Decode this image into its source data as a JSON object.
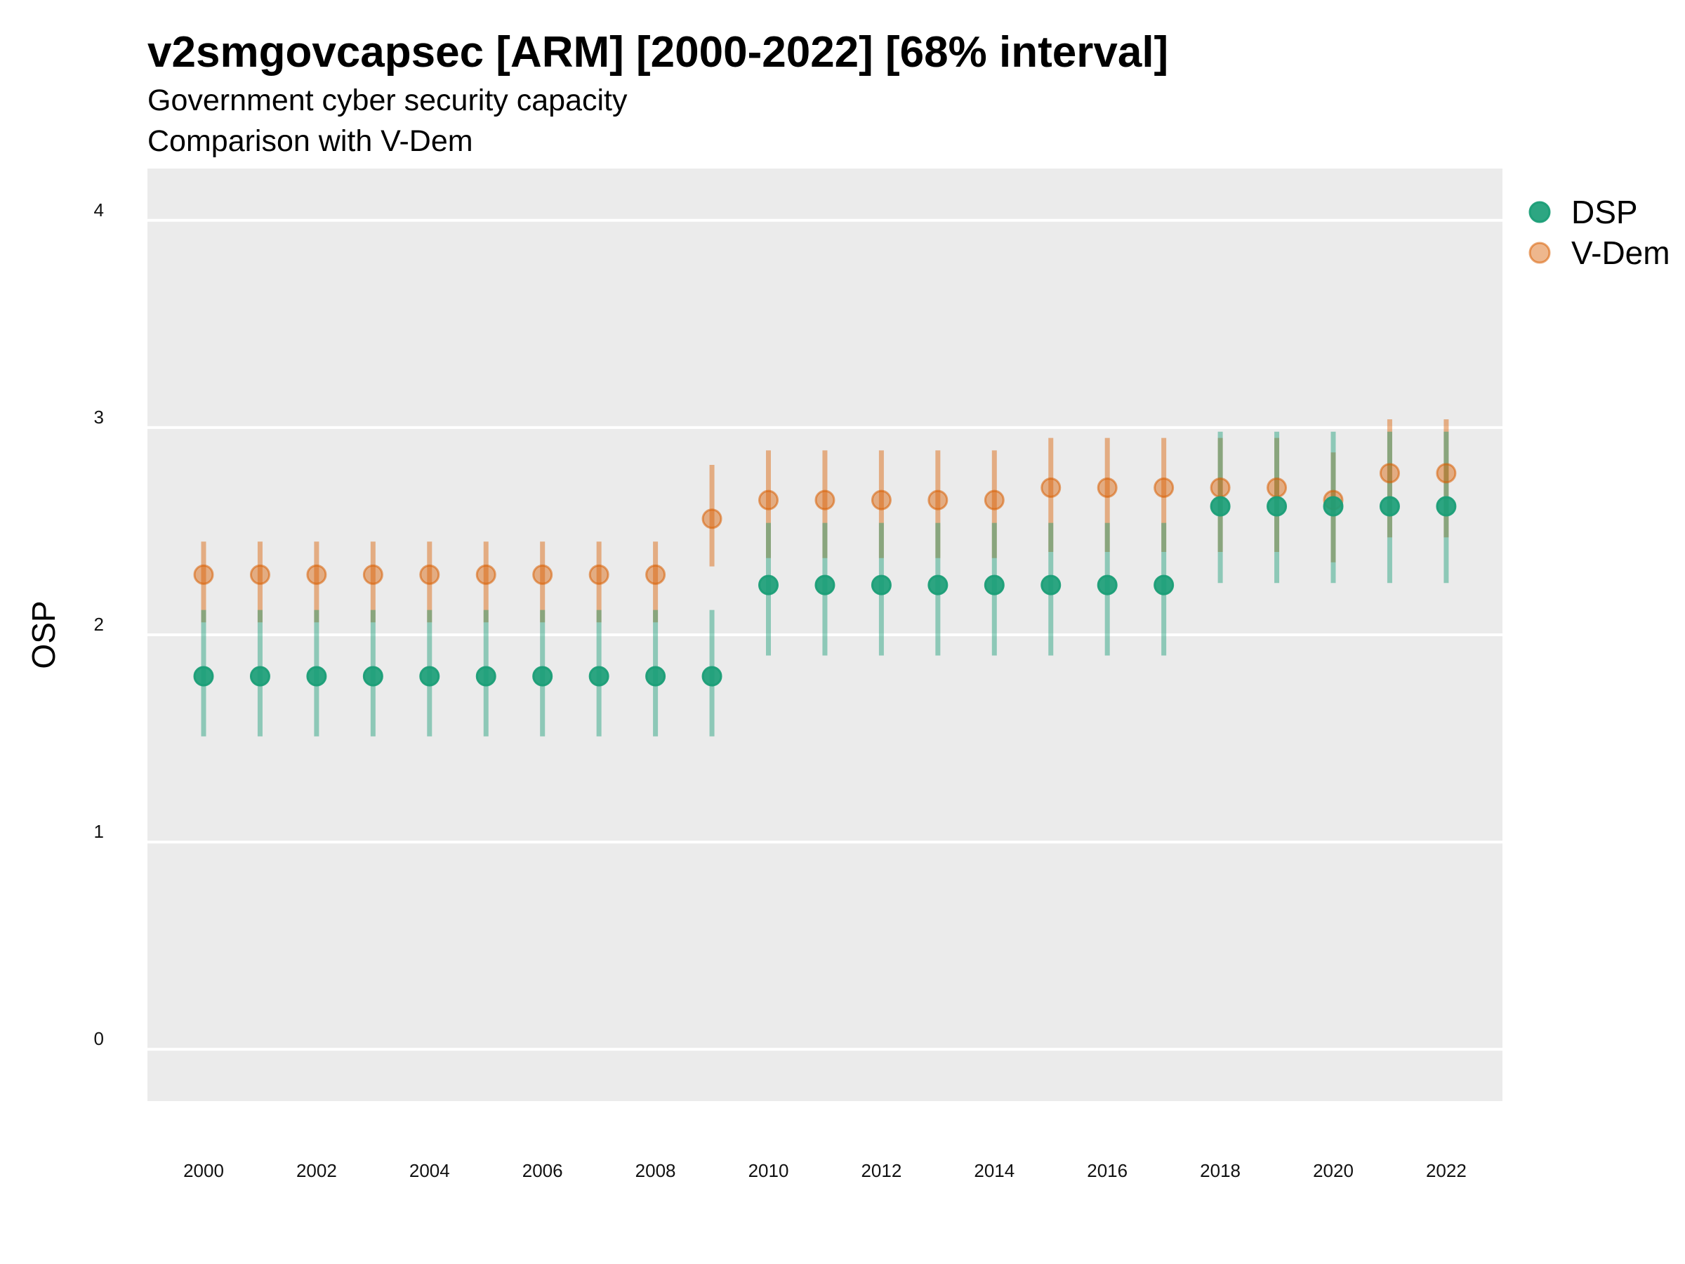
{
  "chart_data": {
    "type": "scatter",
    "title": "v2smgovcapsec [ARM] [2000-2022] [68% interval]",
    "subtitles": [
      "Government cyber security capacity",
      "Comparison with V-Dem"
    ],
    "ylabel": "OSP",
    "xlabel": "",
    "ylim": [
      -0.25,
      4.25
    ],
    "yticks": [
      0,
      1,
      2,
      3,
      4
    ],
    "x": [
      2000,
      2001,
      2002,
      2003,
      2004,
      2005,
      2006,
      2007,
      2008,
      2009,
      2010,
      2011,
      2012,
      2013,
      2014,
      2015,
      2016,
      2017,
      2018,
      2019,
      2020,
      2021,
      2022
    ],
    "xticks": [
      2000,
      2002,
      2004,
      2006,
      2008,
      2010,
      2012,
      2014,
      2016,
      2018,
      2020,
      2022
    ],
    "grid": true,
    "legend_position": "right",
    "series": [
      {
        "name": "V-Dem",
        "color": "#D95F02",
        "values": [
          2.29,
          2.29,
          2.29,
          2.29,
          2.29,
          2.29,
          2.29,
          2.29,
          2.29,
          2.56,
          2.65,
          2.65,
          2.65,
          2.65,
          2.65,
          2.71,
          2.71,
          2.71,
          2.71,
          2.71,
          2.65,
          2.78,
          2.78
        ],
        "lower": [
          2.06,
          2.06,
          2.06,
          2.06,
          2.06,
          2.06,
          2.06,
          2.06,
          2.06,
          2.33,
          2.37,
          2.37,
          2.37,
          2.37,
          2.37,
          2.4,
          2.4,
          2.4,
          2.4,
          2.4,
          2.35,
          2.47,
          2.47
        ],
        "upper": [
          2.45,
          2.45,
          2.45,
          2.45,
          2.45,
          2.45,
          2.45,
          2.45,
          2.45,
          2.82,
          2.89,
          2.89,
          2.89,
          2.89,
          2.89,
          2.95,
          2.95,
          2.95,
          2.95,
          2.95,
          2.88,
          3.04,
          3.04
        ]
      },
      {
        "name": "DSP",
        "color": "#1B9E77",
        "values": [
          1.8,
          1.8,
          1.8,
          1.8,
          1.8,
          1.8,
          1.8,
          1.8,
          1.8,
          1.8,
          2.24,
          2.24,
          2.24,
          2.24,
          2.24,
          2.24,
          2.24,
          2.24,
          2.62,
          2.62,
          2.62,
          2.62,
          2.62
        ],
        "lower": [
          1.51,
          1.51,
          1.51,
          1.51,
          1.51,
          1.51,
          1.51,
          1.51,
          1.51,
          1.51,
          1.9,
          1.9,
          1.9,
          1.9,
          1.9,
          1.9,
          1.9,
          1.9,
          2.25,
          2.25,
          2.25,
          2.25,
          2.25
        ],
        "upper": [
          2.12,
          2.12,
          2.12,
          2.12,
          2.12,
          2.12,
          2.12,
          2.12,
          2.12,
          2.12,
          2.54,
          2.54,
          2.54,
          2.54,
          2.54,
          2.54,
          2.54,
          2.54,
          2.98,
          2.98,
          2.98,
          2.98,
          2.98
        ]
      }
    ],
    "legend_order": [
      "DSP",
      "V-Dem"
    ],
    "colors": {
      "panel_bg": "#EBEBEB",
      "grid": "#FFFFFF"
    }
  }
}
